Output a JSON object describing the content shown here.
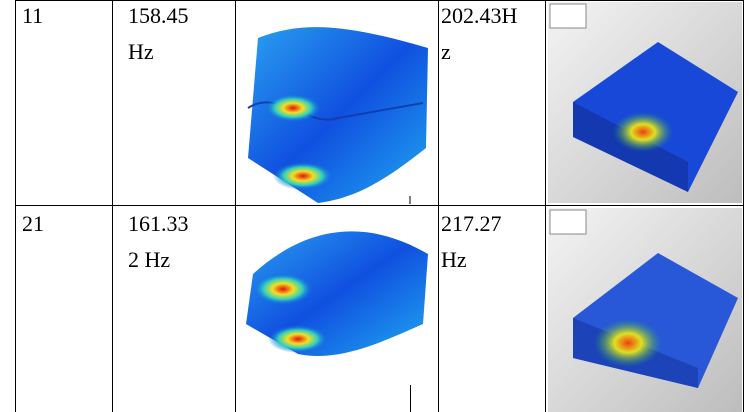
{
  "table": {
    "rows": [
      [
        "11",
        "158.45 Hz",
        "202.43Hz"
      ],
      [
        "21",
        "161.332 Hz",
        "217.27 Hz"
      ]
    ]
  }
}
